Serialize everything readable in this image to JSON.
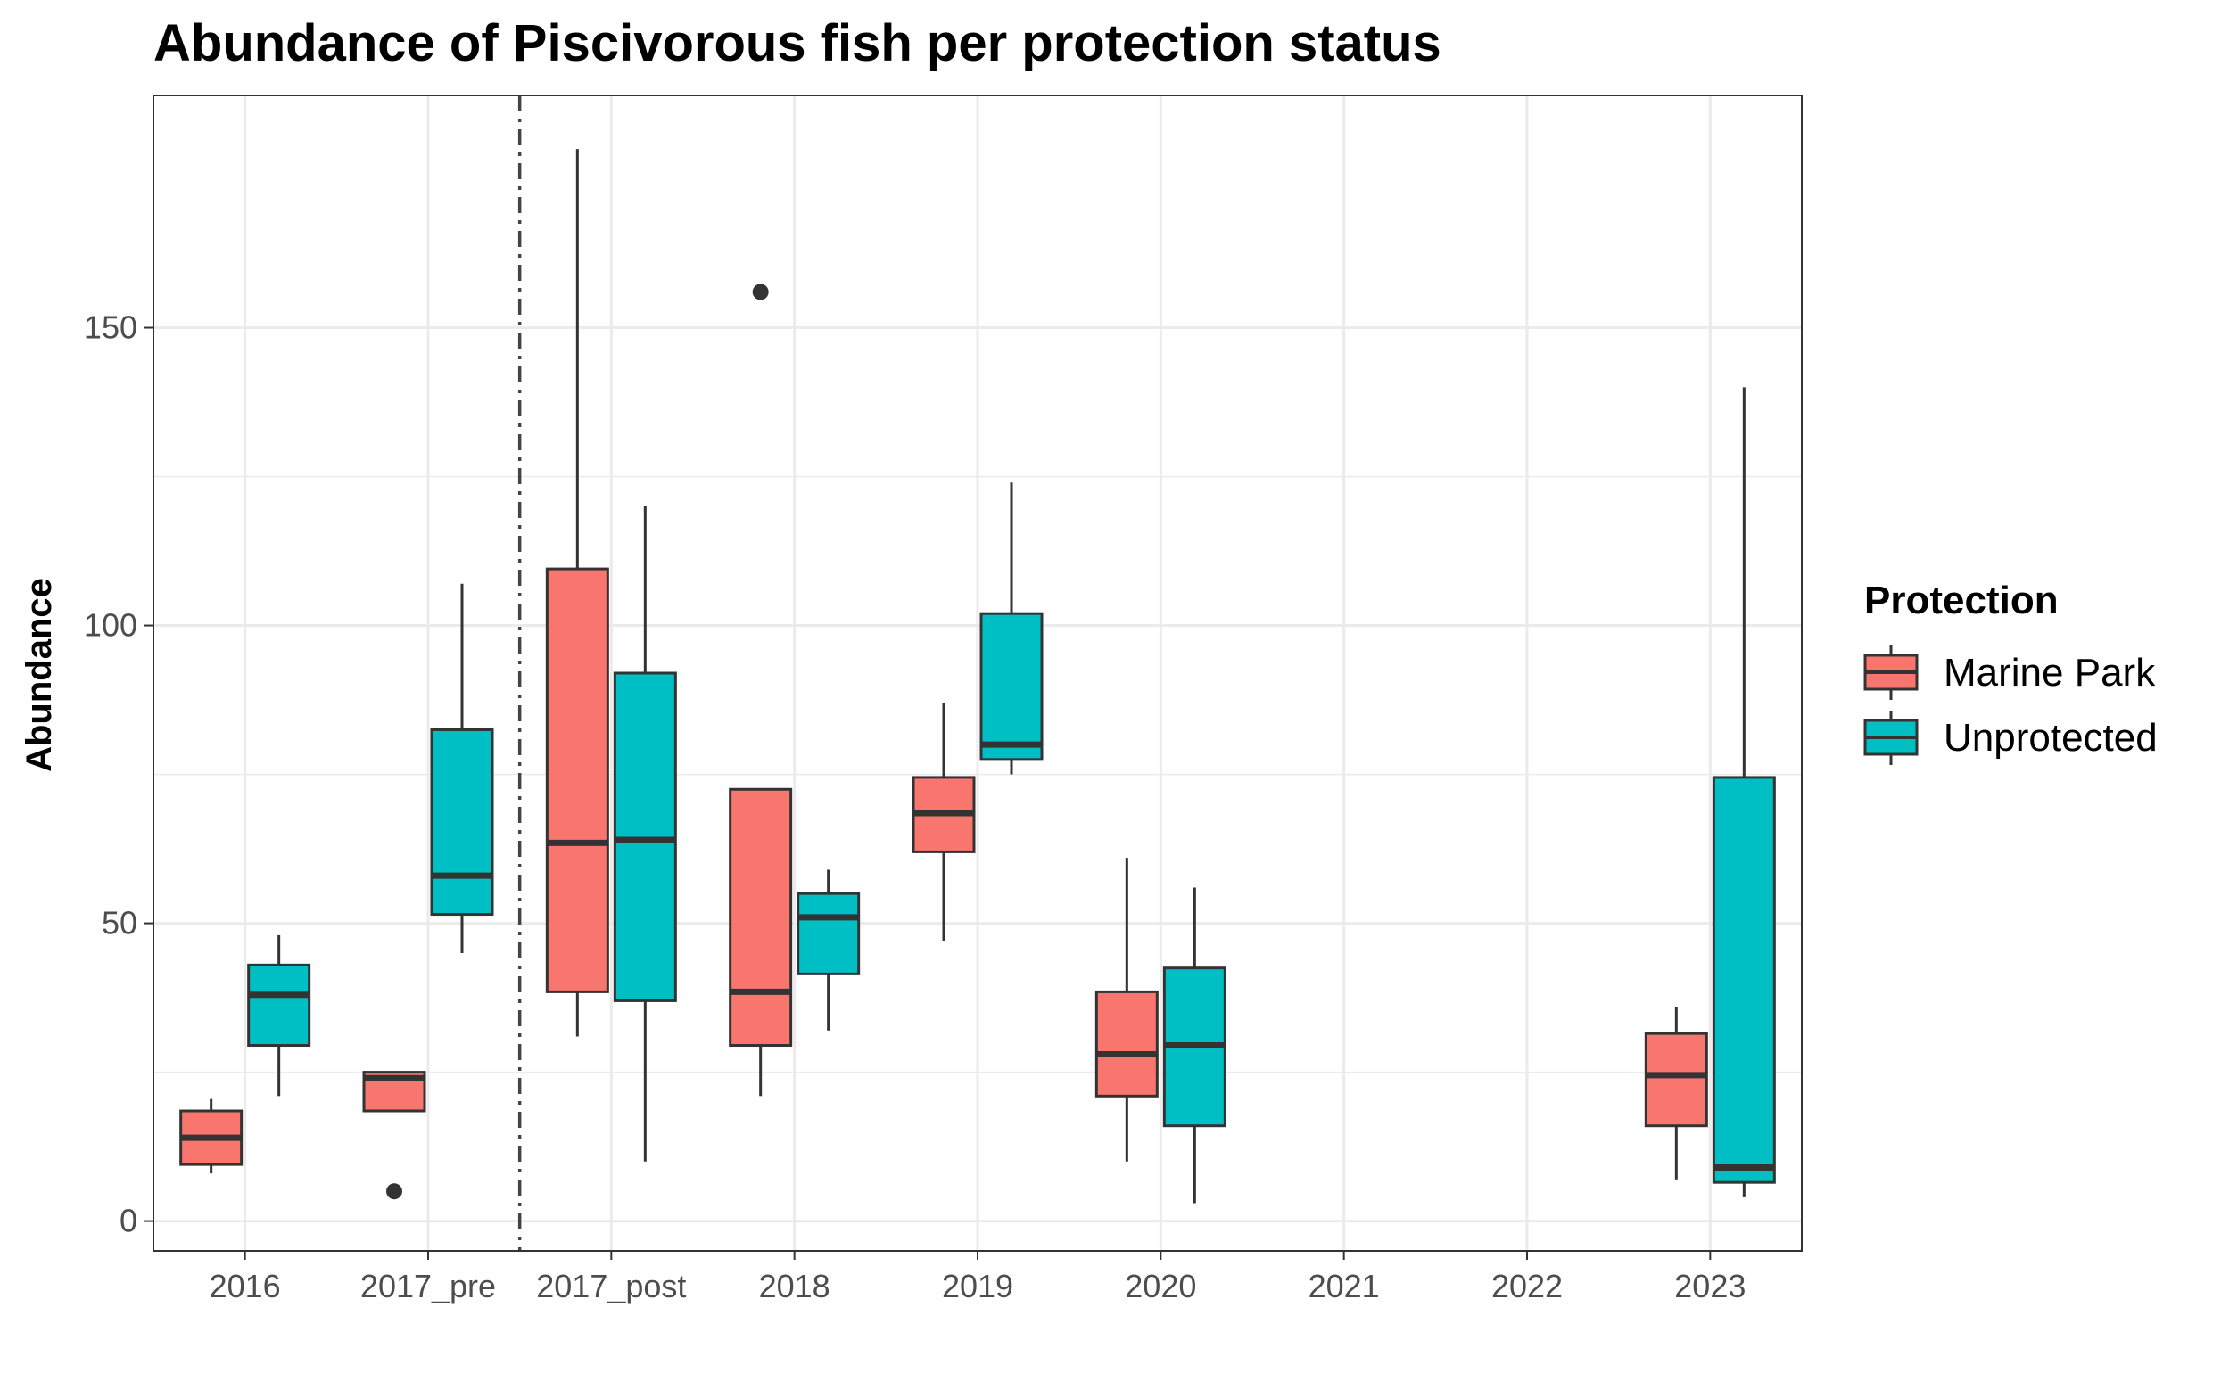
{
  "chart_data": {
    "type": "boxplot",
    "title": "Abundance of Piscivorous fish per protection status",
    "xlabel": "",
    "ylabel": "Abundance",
    "categories": [
      "2016",
      "2017_pre",
      "2017_post",
      "2018",
      "2019",
      "2020",
      "2021",
      "2022",
      "2023"
    ],
    "y_ticks": [
      0,
      50,
      100,
      150
    ],
    "ylim": [
      -5,
      189
    ],
    "grid": true,
    "legend": {
      "title": "Protection",
      "position": "right"
    },
    "vline_between": [
      "2017_pre",
      "2017_post"
    ],
    "series": [
      {
        "name": "Marine Park",
        "color": "#F8766D",
        "boxes": [
          {
            "category": "2016",
            "min": 8,
            "q1": 9.5,
            "median": 14,
            "q3": 18.5,
            "max": 20.5,
            "outliers": []
          },
          {
            "category": "2017_pre",
            "min": 18.5,
            "q1": 18.5,
            "median": 24,
            "q3": 25,
            "max": 25,
            "outliers": [
              5
            ]
          },
          {
            "category": "2017_post",
            "min": 31,
            "q1": 38.5,
            "median": 63.5,
            "q3": 109.5,
            "max": 180,
            "outliers": []
          },
          {
            "category": "2018",
            "min": 21,
            "q1": 29.5,
            "median": 38.5,
            "q3": 72.5,
            "max": 72.5,
            "outliers": [
              156
            ]
          },
          {
            "category": "2019",
            "min": 47,
            "q1": 62,
            "median": 68.5,
            "q3": 74.5,
            "max": 87,
            "outliers": []
          },
          {
            "category": "2020",
            "min": 10,
            "q1": 21,
            "median": 28,
            "q3": 38.5,
            "max": 61,
            "outliers": []
          },
          {
            "category": "2023",
            "min": 7,
            "q1": 16,
            "median": 24.5,
            "q3": 31.5,
            "max": 36,
            "outliers": []
          }
        ]
      },
      {
        "name": "Unprotected",
        "color": "#00BFC4",
        "boxes": [
          {
            "category": "2016",
            "min": 21,
            "q1": 29.5,
            "median": 38,
            "q3": 43,
            "max": 48,
            "outliers": []
          },
          {
            "category": "2017_pre",
            "min": 45,
            "q1": 51.5,
            "median": 58,
            "q3": 82.5,
            "max": 107,
            "outliers": []
          },
          {
            "category": "2017_post",
            "min": 10,
            "q1": 37,
            "median": 64,
            "q3": 92,
            "max": 120,
            "outliers": []
          },
          {
            "category": "2018",
            "min": 32,
            "q1": 41.5,
            "median": 51,
            "q3": 55,
            "max": 59,
            "outliers": []
          },
          {
            "category": "2019",
            "min": 75,
            "q1": 77.5,
            "median": 80,
            "q3": 102,
            "max": 124,
            "outliers": []
          },
          {
            "category": "2020",
            "min": 3,
            "q1": 16,
            "median": 29.5,
            "q3": 42.5,
            "max": 56,
            "outliers": []
          },
          {
            "category": "2023",
            "min": 4,
            "q1": 6.5,
            "median": 9,
            "q3": 74.5,
            "max": 140,
            "outliers": []
          }
        ]
      }
    ]
  }
}
